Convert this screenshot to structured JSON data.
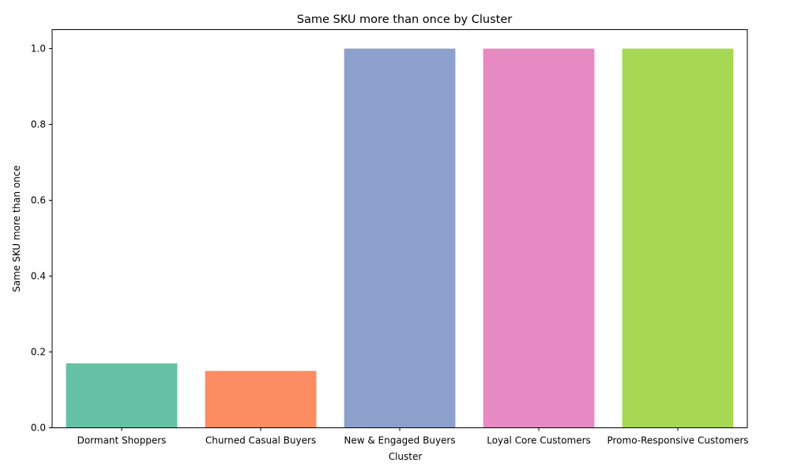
{
  "chart_data": {
    "type": "bar",
    "title": "Same SKU more than once by Cluster",
    "xlabel": "Cluster",
    "ylabel": "Same SKU more than once",
    "categories": [
      "Dormant Shoppers",
      "Churned Casual Buyers",
      "New & Engaged Buyers",
      "Loyal Core Customers",
      "Promo-Responsive Customers"
    ],
    "values": [
      0.17,
      0.15,
      1.0,
      1.0,
      1.0
    ],
    "colors": [
      "#66c2a5",
      "#fc8d62",
      "#8da0cb",
      "#e78ac3",
      "#a6d854"
    ],
    "ylim": [
      0,
      1.05
    ],
    "yticks": [
      0.0,
      0.2,
      0.4,
      0.6,
      0.8,
      1.0
    ],
    "ytick_labels": [
      "0.0",
      "0.2",
      "0.4",
      "0.6",
      "0.8",
      "1.0"
    ],
    "grid": false,
    "legend": "none"
  }
}
